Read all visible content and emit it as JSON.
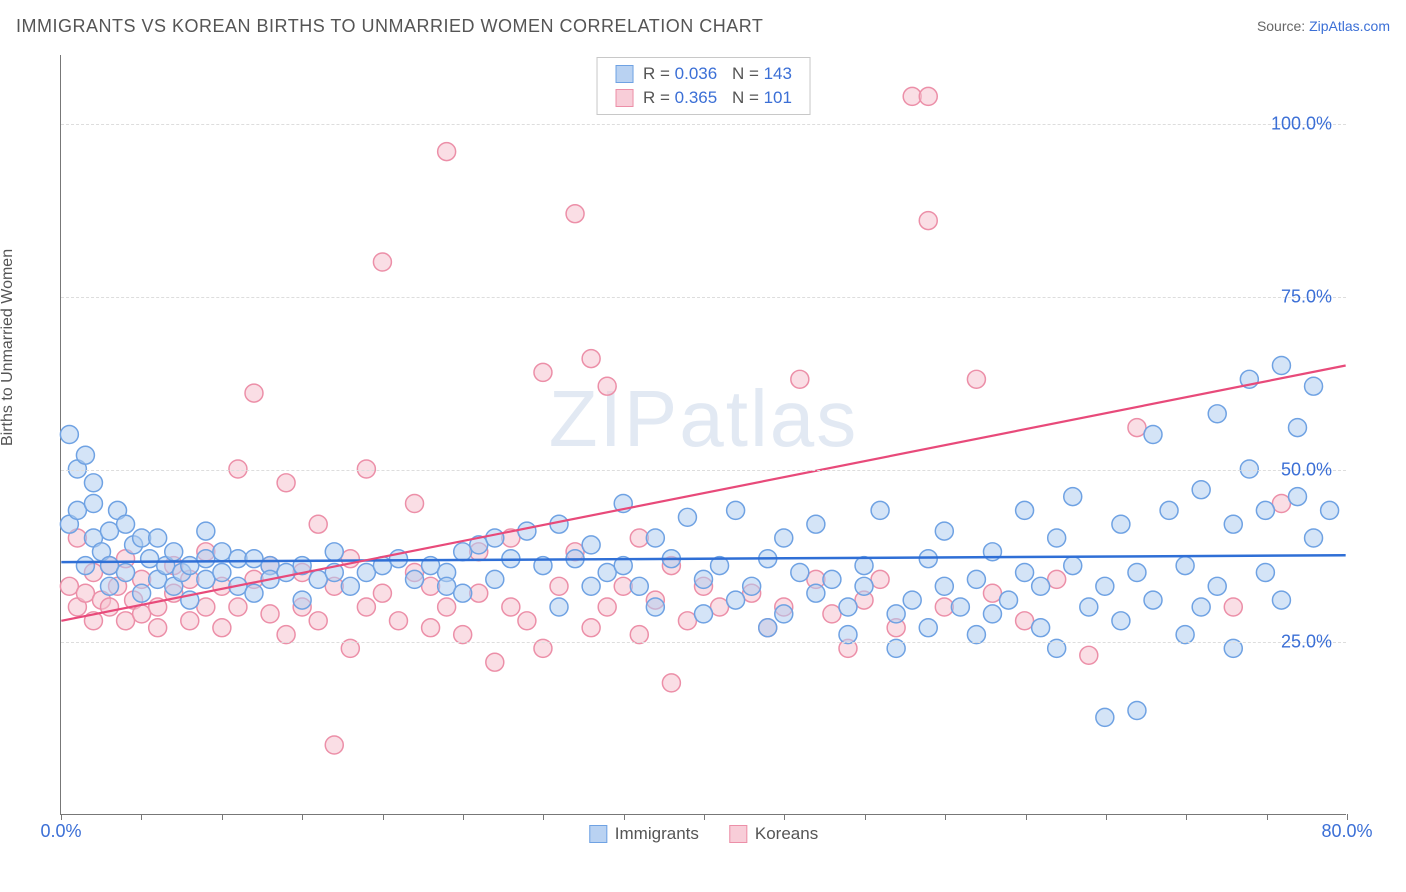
{
  "title": "IMMIGRANTS VS KOREAN BIRTHS TO UNMARRIED WOMEN CORRELATION CHART",
  "source_prefix": "Source: ",
  "source_name": "ZipAtlas.com",
  "ylabel": "Births to Unmarried Women",
  "watermark_a": "ZIP",
  "watermark_b": "atlas",
  "chart": {
    "type": "scatter",
    "xlim": [
      0,
      80
    ],
    "ylim": [
      0,
      110
    ],
    "grid_y": [
      25,
      50,
      75,
      100
    ],
    "grid_color": "#dddddd",
    "xtick_step": 5,
    "xtick_labels": [
      {
        "x": 0,
        "label": "0.0%"
      },
      {
        "x": 80,
        "label": "80.0%"
      }
    ],
    "ytick_labels": [
      {
        "y": 25,
        "label": "25.0%"
      },
      {
        "y": 50,
        "label": "50.0%"
      },
      {
        "y": 75,
        "label": "75.0%"
      },
      {
        "y": 100,
        "label": "100.0%"
      }
    ],
    "background_color": "#ffffff",
    "marker_radius": 9,
    "marker_stroke_width": 1.5,
    "series": [
      {
        "name": "Immigrants",
        "key": "immigrants",
        "fill": "#b0cdf0",
        "fill_opacity": 0.55,
        "stroke": "#6fa2e3",
        "swatch_fill": "#b9d2f2",
        "swatch_border": "#6fa2e3",
        "R": "0.036",
        "N": "143",
        "trend": {
          "x1": 0,
          "y1": 36.5,
          "x2": 80,
          "y2": 37.5,
          "color": "#2f6fd6",
          "width": 2.5
        },
        "points": [
          [
            0.5,
            42
          ],
          [
            0.5,
            55
          ],
          [
            1,
            50
          ],
          [
            1,
            44
          ],
          [
            1.5,
            52
          ],
          [
            1.5,
            36
          ],
          [
            2,
            45
          ],
          [
            2,
            40
          ],
          [
            2.5,
            38
          ],
          [
            2,
            48
          ],
          [
            3,
            41
          ],
          [
            3,
            36
          ],
          [
            3.5,
            44
          ],
          [
            3,
            33
          ],
          [
            4,
            42
          ],
          [
            4,
            35
          ],
          [
            4.5,
            39
          ],
          [
            5,
            40
          ],
          [
            5,
            32
          ],
          [
            5.5,
            37
          ],
          [
            6,
            34
          ],
          [
            6,
            40
          ],
          [
            6.5,
            36
          ],
          [
            7,
            38
          ],
          [
            7,
            33
          ],
          [
            7.5,
            35
          ],
          [
            8,
            36
          ],
          [
            8,
            31
          ],
          [
            9,
            37
          ],
          [
            9,
            34
          ],
          [
            9,
            41
          ],
          [
            10,
            35
          ],
          [
            10,
            38
          ],
          [
            11,
            33
          ],
          [
            11,
            37
          ],
          [
            12,
            37
          ],
          [
            12,
            32
          ],
          [
            13,
            36
          ],
          [
            13,
            34
          ],
          [
            14,
            35
          ],
          [
            15,
            36
          ],
          [
            15,
            31
          ],
          [
            16,
            34
          ],
          [
            17,
            35
          ],
          [
            17,
            38
          ],
          [
            18,
            33
          ],
          [
            19,
            35
          ],
          [
            20,
            36
          ],
          [
            21,
            37
          ],
          [
            22,
            34
          ],
          [
            23,
            36
          ],
          [
            24,
            35
          ],
          [
            24,
            33
          ],
          [
            25,
            38
          ],
          [
            25,
            32
          ],
          [
            26,
            39
          ],
          [
            27,
            40
          ],
          [
            27,
            34
          ],
          [
            28,
            37
          ],
          [
            29,
            41
          ],
          [
            30,
            36
          ],
          [
            31,
            42
          ],
          [
            31,
            30
          ],
          [
            32,
            37
          ],
          [
            33,
            33
          ],
          [
            33,
            39
          ],
          [
            34,
            35
          ],
          [
            35,
            45
          ],
          [
            35,
            36
          ],
          [
            36,
            33
          ],
          [
            37,
            30
          ],
          [
            37,
            40
          ],
          [
            38,
            37
          ],
          [
            39,
            43
          ],
          [
            40,
            34
          ],
          [
            40,
            29
          ],
          [
            41,
            36
          ],
          [
            42,
            44
          ],
          [
            42,
            31
          ],
          [
            43,
            33
          ],
          [
            44,
            37
          ],
          [
            44,
            27
          ],
          [
            45,
            29
          ],
          [
            45,
            40
          ],
          [
            46,
            35
          ],
          [
            47,
            32
          ],
          [
            47,
            42
          ],
          [
            48,
            34
          ],
          [
            49,
            26
          ],
          [
            49,
            30
          ],
          [
            50,
            36
          ],
          [
            50,
            33
          ],
          [
            51,
            44
          ],
          [
            52,
            29
          ],
          [
            52,
            24
          ],
          [
            53,
            31
          ],
          [
            54,
            37
          ],
          [
            54,
            27
          ],
          [
            55,
            33
          ],
          [
            55,
            41
          ],
          [
            56,
            30
          ],
          [
            57,
            34
          ],
          [
            57,
            26
          ],
          [
            58,
            38
          ],
          [
            58,
            29
          ],
          [
            59,
            31
          ],
          [
            60,
            35
          ],
          [
            60,
            44
          ],
          [
            61,
            33
          ],
          [
            61,
            27
          ],
          [
            62,
            40
          ],
          [
            62,
            24
          ],
          [
            63,
            36
          ],
          [
            63,
            46
          ],
          [
            64,
            30
          ],
          [
            65,
            33
          ],
          [
            65,
            14
          ],
          [
            66,
            42
          ],
          [
            66,
            28
          ],
          [
            67,
            35
          ],
          [
            67,
            15
          ],
          [
            68,
            55
          ],
          [
            68,
            31
          ],
          [
            69,
            44
          ],
          [
            70,
            26
          ],
          [
            70,
            36
          ],
          [
            71,
            47
          ],
          [
            71,
            30
          ],
          [
            72,
            58
          ],
          [
            72,
            33
          ],
          [
            73,
            42
          ],
          [
            73,
            24
          ],
          [
            74,
            50
          ],
          [
            74,
            63
          ],
          [
            75,
            35
          ],
          [
            75,
            44
          ],
          [
            76,
            65
          ],
          [
            76,
            31
          ],
          [
            77,
            46
          ],
          [
            77,
            56
          ],
          [
            78,
            62
          ],
          [
            78,
            40
          ],
          [
            79,
            44
          ]
        ]
      },
      {
        "name": "Koreans",
        "key": "koreans",
        "fill": "#f6c2cf",
        "fill_opacity": 0.55,
        "stroke": "#ec8fa8",
        "swatch_fill": "#f8cdd8",
        "swatch_border": "#ec8fa8",
        "R": "0.365",
        "N": "101",
        "trend": {
          "x1": 0,
          "y1": 28,
          "x2": 80,
          "y2": 65,
          "color": "#e84a7a",
          "width": 2.2
        },
        "points": [
          [
            0.5,
            33
          ],
          [
            1,
            30
          ],
          [
            1,
            40
          ],
          [
            1.5,
            32
          ],
          [
            2,
            35
          ],
          [
            2,
            28
          ],
          [
            2.5,
            31
          ],
          [
            3,
            30
          ],
          [
            3,
            36
          ],
          [
            3.5,
            33
          ],
          [
            4,
            28
          ],
          [
            4,
            37
          ],
          [
            4.5,
            31
          ],
          [
            5,
            29
          ],
          [
            5,
            34
          ],
          [
            6,
            27
          ],
          [
            6,
            30
          ],
          [
            7,
            32
          ],
          [
            7,
            36
          ],
          [
            8,
            28
          ],
          [
            8,
            34
          ],
          [
            9,
            30
          ],
          [
            9,
            38
          ],
          [
            10,
            27
          ],
          [
            10,
            33
          ],
          [
            11,
            50
          ],
          [
            11,
            30
          ],
          [
            12,
            61
          ],
          [
            12,
            34
          ],
          [
            13,
            36
          ],
          [
            13,
            29
          ],
          [
            14,
            48
          ],
          [
            14,
            26
          ],
          [
            15,
            30
          ],
          [
            15,
            35
          ],
          [
            16,
            42
          ],
          [
            16,
            28
          ],
          [
            17,
            10
          ],
          [
            17,
            33
          ],
          [
            18,
            37
          ],
          [
            18,
            24
          ],
          [
            19,
            30
          ],
          [
            19,
            50
          ],
          [
            20,
            80
          ],
          [
            20,
            32
          ],
          [
            21,
            28
          ],
          [
            22,
            35
          ],
          [
            22,
            45
          ],
          [
            23,
            27
          ],
          [
            23,
            33
          ],
          [
            24,
            96
          ],
          [
            24,
            30
          ],
          [
            25,
            26
          ],
          [
            26,
            38
          ],
          [
            26,
            32
          ],
          [
            27,
            22
          ],
          [
            28,
            40
          ],
          [
            28,
            30
          ],
          [
            29,
            28
          ],
          [
            30,
            64
          ],
          [
            30,
            24
          ],
          [
            31,
            33
          ],
          [
            32,
            87
          ],
          [
            32,
            38
          ],
          [
            33,
            66
          ],
          [
            33,
            27
          ],
          [
            34,
            62
          ],
          [
            34,
            30
          ],
          [
            35,
            33
          ],
          [
            36,
            26
          ],
          [
            36,
            40
          ],
          [
            37,
            31
          ],
          [
            38,
            19
          ],
          [
            38,
            36
          ],
          [
            39,
            28
          ],
          [
            40,
            33
          ],
          [
            41,
            30
          ],
          [
            42,
            104
          ],
          [
            43,
            32
          ],
          [
            44,
            104
          ],
          [
            44,
            27
          ],
          [
            45,
            30
          ],
          [
            46,
            63
          ],
          [
            47,
            34
          ],
          [
            48,
            29
          ],
          [
            49,
            24
          ],
          [
            50,
            31
          ],
          [
            51,
            34
          ],
          [
            52,
            27
          ],
          [
            53,
            104
          ],
          [
            54,
            104
          ],
          [
            54,
            86
          ],
          [
            55,
            30
          ],
          [
            57,
            63
          ],
          [
            58,
            32
          ],
          [
            60,
            28
          ],
          [
            62,
            34
          ],
          [
            64,
            23
          ],
          [
            67,
            56
          ],
          [
            73,
            30
          ],
          [
            76,
            45
          ]
        ]
      }
    ]
  }
}
